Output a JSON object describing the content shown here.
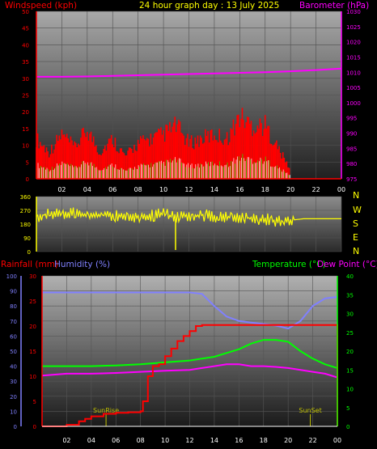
{
  "header": {
    "left_label": "Windspeed (kph)",
    "title": "24 hour graph day : 13 July 2025",
    "right_label": "Barometer (hPa)"
  },
  "colors": {
    "wind": "#ff0000",
    "wind_gust_fill": "#ff0000",
    "wind_avg": "#00ff00",
    "wind_low": "#ffffff",
    "barometer": "#ff00ff",
    "direction": "#ffff00",
    "rain": "#ff0000",
    "humidity": "#8080ff",
    "temperature": "#00ff00",
    "dewpoint": "#ff00ff",
    "sun_markers": "#c0c000"
  },
  "chart_data": [
    {
      "id": "wind-baro",
      "type": "area",
      "x_ticks": [
        "02",
        "04",
        "06",
        "08",
        "10",
        "12",
        "14",
        "16",
        "18",
        "20",
        "22",
        "00"
      ],
      "ylabel_left": "Windspeed (kph)",
      "ylabel_right": "Barometer (hPa)",
      "yticks_left": [
        "0",
        "5",
        "10",
        "15",
        "20",
        "25",
        "30",
        "35",
        "40",
        "45",
        "50"
      ],
      "ylim_left": [
        0,
        50
      ],
      "yticks_right": [
        "975",
        "980",
        "985",
        "990",
        "995",
        "1000",
        "1005",
        "1010",
        "1015",
        "1020",
        "1025",
        "1030"
      ],
      "ylim_right": [
        975,
        1030
      ],
      "series": [
        {
          "name": "Windspeed (kph)",
          "axis": "left",
          "hours": [
            0,
            1,
            2,
            3,
            4,
            5,
            6,
            7,
            8,
            9,
            10,
            11,
            12,
            13,
            14,
            15,
            16,
            17,
            18,
            19,
            20
          ],
          "values": [
            9,
            6,
            10,
            7,
            11,
            6,
            9,
            5,
            8,
            9,
            10,
            12,
            8,
            9,
            10,
            9,
            14,
            12,
            12,
            7,
            2
          ]
        },
        {
          "name": "Barometer (hPa)",
          "axis": "right",
          "hours": [
            0,
            2,
            4,
            6,
            8,
            10,
            12,
            14,
            16,
            18,
            20,
            22,
            24
          ],
          "values": [
            1008.5,
            1008.5,
            1008.6,
            1008.8,
            1009.0,
            1009.2,
            1009.4,
            1009.6,
            1009.8,
            1010.0,
            1010.3,
            1010.7,
            1011.2
          ]
        }
      ]
    },
    {
      "id": "direction",
      "type": "line",
      "x_ticks": [
        "02",
        "04",
        "06",
        "08",
        "10",
        "12",
        "14",
        "16",
        "18",
        "20",
        "22",
        "00"
      ],
      "yticks_left": [
        "360",
        "270",
        "180",
        "90",
        "0"
      ],
      "ylim": [
        0,
        360
      ],
      "compass_labels": [
        "N",
        "W",
        "S",
        "E",
        "N"
      ],
      "series": [
        {
          "name": "Wind direction",
          "hours": [
            0,
            1,
            2,
            3,
            4,
            5,
            6,
            7,
            8,
            9,
            10,
            11,
            12,
            13,
            14,
            15,
            16,
            17,
            18,
            19,
            20,
            21,
            22,
            23,
            24
          ],
          "values": [
            230,
            245,
            240,
            250,
            235,
            240,
            238,
            232,
            230,
            236,
            245,
            228,
            238,
            240,
            230,
            228,
            225,
            218,
            212,
            200,
            205,
            215,
            215,
            215,
            215
          ]
        }
      ]
    },
    {
      "id": "rain-hum-temp",
      "type": "line",
      "x_ticks": [
        "02",
        "04",
        "06",
        "08",
        "10",
        "12",
        "14",
        "16",
        "18",
        "20",
        "22",
        "00"
      ],
      "labels": {
        "rainfall": "Rainfall (mm)",
        "humidity": "Humidity (%)",
        "temperature": "Temperature (°C)",
        "dewpoint": "Dew Point (°C)"
      },
      "yticks_humidity": [
        "0",
        "10",
        "20",
        "30",
        "40",
        "50",
        "60",
        "70",
        "80",
        "90",
        "100"
      ],
      "ylim_humidity": [
        0,
        100
      ],
      "yticks_rain": [
        "0",
        "5",
        "10",
        "15",
        "20",
        "25",
        "30"
      ],
      "ylim_rain": [
        0,
        30
      ],
      "yticks_temp": [
        "0",
        "5",
        "10",
        "15",
        "20",
        "25",
        "30",
        "35",
        "40"
      ],
      "ylim_temp": [
        0,
        40
      ],
      "sunrise_label": "SunRise",
      "sunset_label": "SunSet",
      "sunrise_hour": 5.2,
      "sunset_hour": 21.8,
      "series": [
        {
          "name": "Humidity (%)",
          "axis": "humidity",
          "hours": [
            0,
            2,
            4,
            6,
            8,
            10,
            12,
            13,
            14,
            15,
            16,
            17,
            18,
            19,
            20,
            21,
            22,
            23,
            24
          ],
          "values": [
            89,
            89,
            89,
            89,
            89,
            89,
            89,
            88,
            80,
            73,
            70,
            69,
            68,
            67,
            65,
            70,
            80,
            85,
            86
          ]
        },
        {
          "name": "Rainfall (mm)",
          "axis": "rain",
          "hours": [
            0,
            1.5,
            2,
            3,
            3.5,
            4,
            5,
            6,
            7,
            8,
            8.2,
            8.6,
            9,
            9.5,
            10,
            10.5,
            11,
            11.5,
            12,
            12.5,
            13,
            14,
            16,
            18,
            20,
            22,
            23.9,
            24
          ],
          "values": [
            0,
            0,
            0.3,
            1.0,
            1.5,
            2.0,
            2.5,
            2.7,
            2.8,
            3.0,
            5.0,
            10.0,
            12.0,
            12.4,
            14.0,
            15.5,
            17.0,
            18.0,
            19.0,
            20.0,
            20.2,
            20.2,
            20.2,
            20.2,
            20.2,
            20.2,
            20.2,
            0
          ]
        },
        {
          "name": "Temperature (°C)",
          "axis": "temp",
          "hours": [
            0,
            2,
            4,
            6,
            8,
            10,
            12,
            13,
            14,
            15,
            16,
            17,
            18,
            19,
            20,
            21,
            22,
            23,
            24
          ],
          "values": [
            16,
            16,
            16,
            16.2,
            16.5,
            17,
            17.5,
            18,
            18.5,
            19.5,
            20.5,
            22,
            23,
            23,
            22.5,
            20,
            18,
            16.5,
            15.5
          ]
        },
        {
          "name": "Dew Point (°C)",
          "axis": "temp",
          "hours": [
            0,
            2,
            4,
            6,
            8,
            10,
            12,
            13,
            14,
            15,
            16,
            17,
            18,
            19,
            20,
            21,
            22,
            23,
            24
          ],
          "values": [
            13.5,
            14,
            14,
            14.2,
            14.5,
            14.8,
            15,
            15.5,
            16,
            16.5,
            16.5,
            16,
            16,
            15.8,
            15.5,
            15,
            14.5,
            14,
            13
          ]
        }
      ]
    }
  ]
}
